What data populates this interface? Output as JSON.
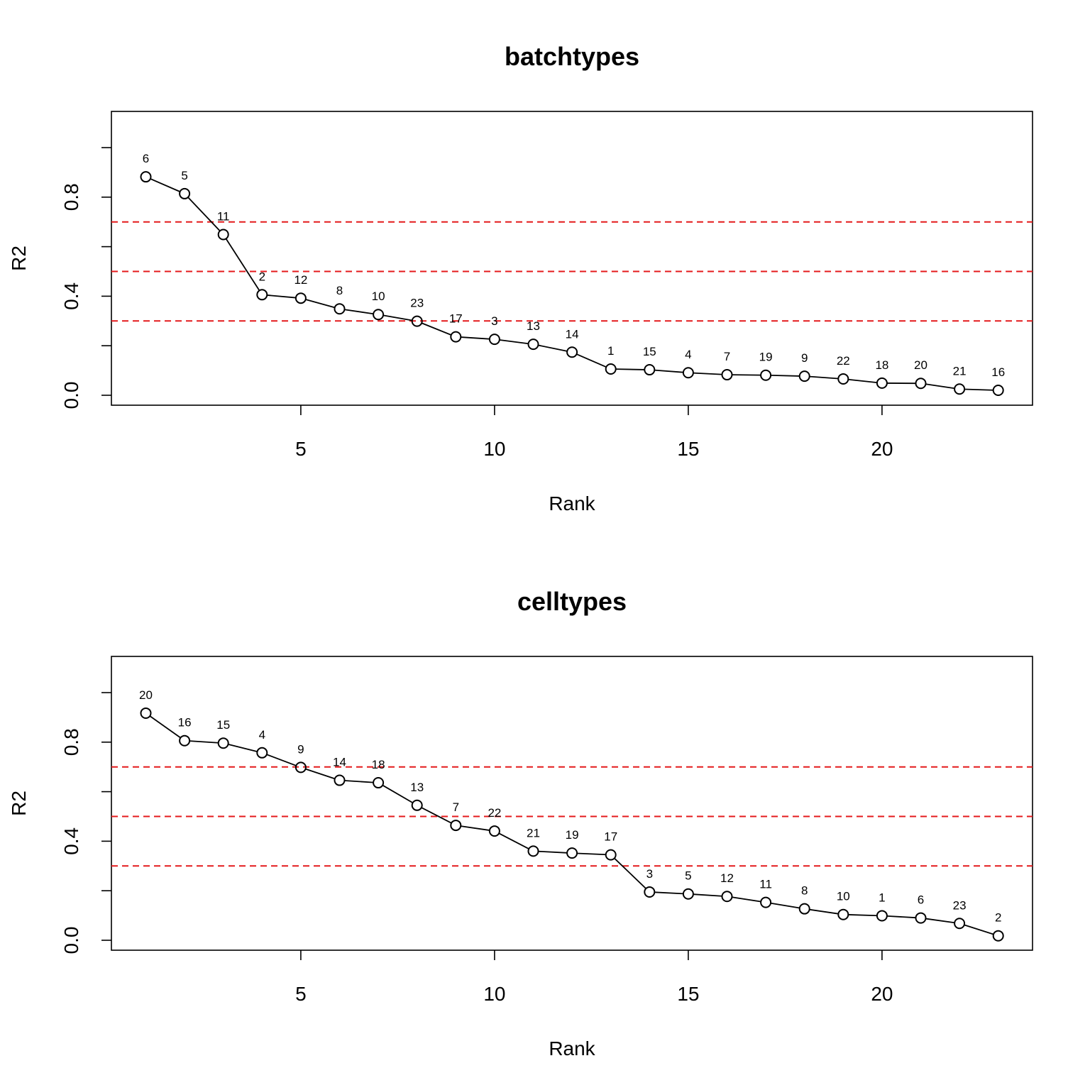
{
  "chart_data": [
    {
      "type": "line",
      "title": "batchtypes",
      "xlabel": "Rank",
      "ylabel": "R2",
      "x": [
        1,
        2,
        3,
        4,
        5,
        6,
        7,
        8,
        9,
        10,
        11,
        12,
        13,
        14,
        15,
        16,
        17,
        18,
        19,
        20,
        21,
        22,
        23
      ],
      "values": [
        0.882,
        0.814,
        0.649,
        0.406,
        0.392,
        0.349,
        0.326,
        0.299,
        0.236,
        0.226,
        0.206,
        0.174,
        0.106,
        0.103,
        0.091,
        0.083,
        0.081,
        0.077,
        0.066,
        0.049,
        0.048,
        0.025,
        0.02
      ],
      "point_labels": [
        "6",
        "5",
        "11",
        "2",
        "12",
        "8",
        "10",
        "23",
        "17",
        "3",
        "13",
        "14",
        "1",
        "15",
        "4",
        "7",
        "19",
        "9",
        "22",
        "18",
        "20",
        "21",
        "16"
      ],
      "xticks": [
        5,
        10,
        15,
        20
      ],
      "yticks": [
        0.0,
        0.4,
        0.8
      ],
      "yminor": [
        0.2,
        0.6,
        1.0
      ],
      "xlim": [
        0.12,
        23.88
      ],
      "ylim": [
        0,
        1.0
      ],
      "reference_lines": [
        0.3,
        0.5,
        0.7
      ],
      "reference_color": "#e41a1c",
      "line_color": "#000000"
    },
    {
      "type": "line",
      "title": "celltypes",
      "xlabel": "Rank",
      "ylabel": "R2",
      "x": [
        1,
        2,
        3,
        4,
        5,
        6,
        7,
        8,
        9,
        10,
        11,
        12,
        13,
        14,
        15,
        16,
        17,
        18,
        19,
        20,
        21,
        22,
        23
      ],
      "values": [
        0.917,
        0.806,
        0.796,
        0.757,
        0.698,
        0.646,
        0.636,
        0.545,
        0.464,
        0.441,
        0.36,
        0.352,
        0.345,
        0.195,
        0.187,
        0.177,
        0.153,
        0.127,
        0.104,
        0.099,
        0.09,
        0.068,
        0.018
      ],
      "point_labels": [
        "20",
        "16",
        "15",
        "4",
        "9",
        "14",
        "18",
        "13",
        "7",
        "22",
        "21",
        "19",
        "17",
        "3",
        "5",
        "12",
        "11",
        "8",
        "10",
        "1",
        "6",
        "23",
        "2"
      ],
      "xticks": [
        5,
        10,
        15,
        20
      ],
      "yticks": [
        0.0,
        0.4,
        0.8
      ],
      "yminor": [
        0.2,
        0.6,
        1.0
      ],
      "xlim": [
        0.12,
        23.88
      ],
      "ylim": [
        0,
        1.0
      ],
      "reference_lines": [
        0.3,
        0.5,
        0.7
      ],
      "reference_color": "#e41a1c",
      "line_color": "#000000"
    }
  ]
}
